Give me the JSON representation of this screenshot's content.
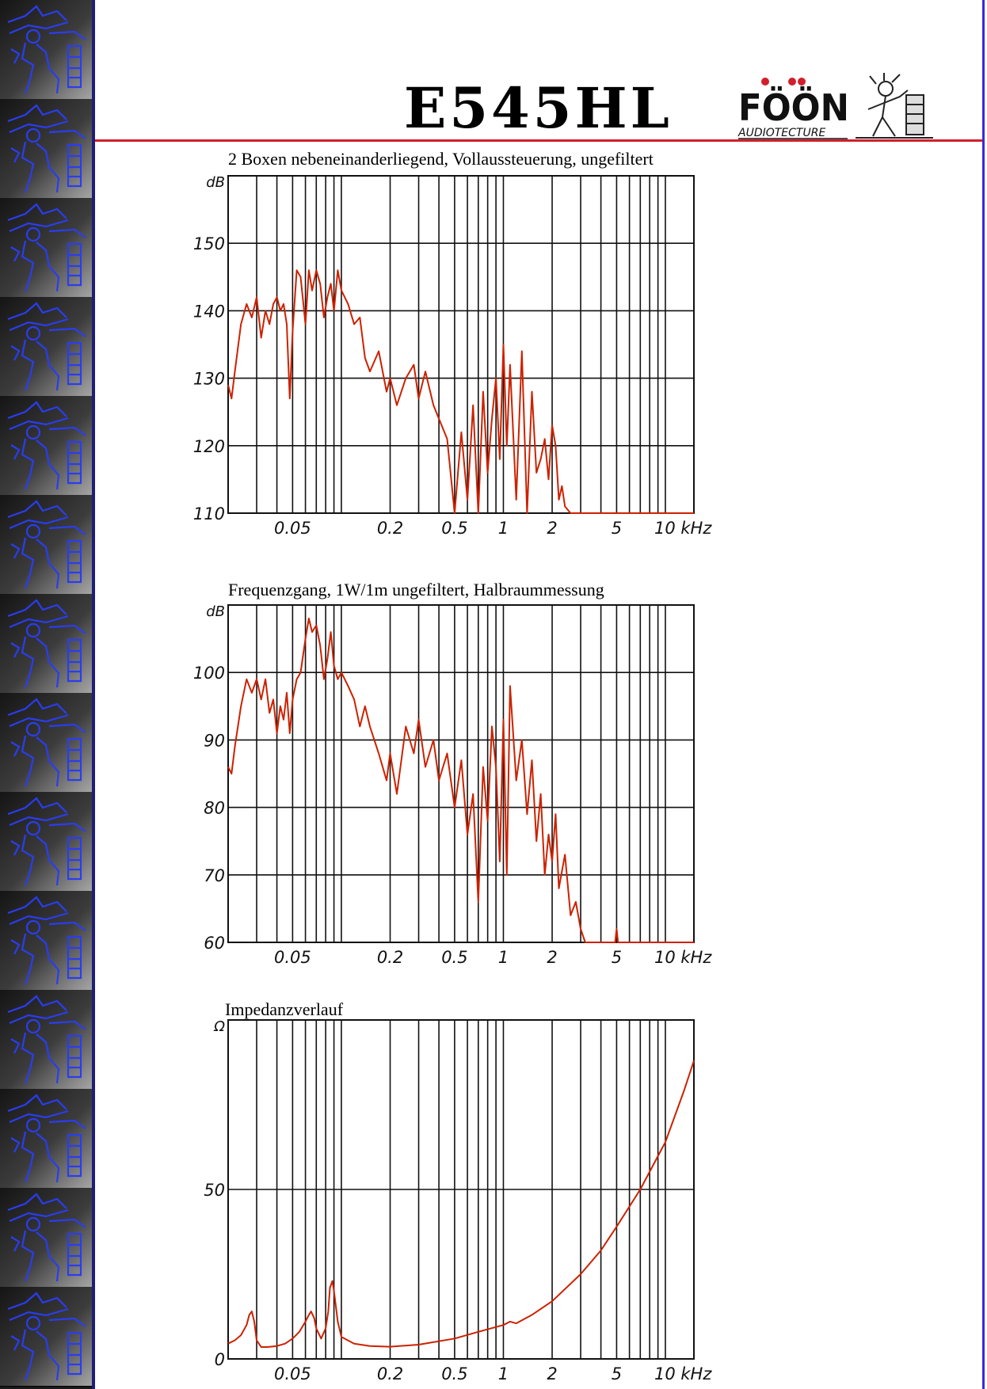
{
  "header": {
    "title": "E545HL",
    "brand": {
      "name": "FÖÖN",
      "tagline": "AUDIOTECTURE"
    }
  },
  "colors": {
    "accent_red": "#d21f2c",
    "curve": "#cc2200",
    "sidebar_art": "#2a3df0",
    "page_border": "#3a2ad8"
  },
  "sidebar": {
    "decoration": "repeated-blue-figure-tile"
  },
  "frequency_axis": {
    "scale": "log",
    "xlim": [
      0.02,
      15
    ],
    "unit_label": "kHz",
    "tick_labels": [
      {
        "value": 0.05,
        "label": "0.05"
      },
      {
        "value": 0.2,
        "label": "0.2"
      },
      {
        "value": 0.5,
        "label": "0.5"
      },
      {
        "value": 1,
        "label": "1"
      },
      {
        "value": 2,
        "label": "2"
      },
      {
        "value": 5,
        "label": "5"
      },
      {
        "value": 10,
        "label": "10 kHz"
      }
    ],
    "gridlines": [
      0.03,
      0.04,
      0.05,
      0.06,
      0.07,
      0.08,
      0.09,
      0.1,
      0.2,
      0.3,
      0.4,
      0.5,
      0.6,
      0.7,
      0.8,
      0.9,
      1,
      2,
      3,
      4,
      5,
      6,
      7,
      8,
      9,
      10
    ]
  },
  "chart_data": [
    {
      "type": "line",
      "title": "2 Boxen nebeneinanderliegend, Vollaussteuerung, ungefiltert",
      "ylabel": "dB",
      "xscale": "log",
      "xlim": [
        0.02,
        15
      ],
      "ylim": [
        110,
        160
      ],
      "yticks": [
        110,
        120,
        130,
        140,
        150
      ],
      "grid": true,
      "series": [
        {
          "x": [
            0.02,
            0.021,
            0.022,
            0.024,
            0.026,
            0.028,
            0.03,
            0.032,
            0.034,
            0.036,
            0.038,
            0.04,
            0.042,
            0.044,
            0.046,
            0.048,
            0.05,
            0.053,
            0.056,
            0.06,
            0.063,
            0.066,
            0.07,
            0.074,
            0.078,
            0.082,
            0.086,
            0.09,
            0.095,
            0.1,
            0.11,
            0.12,
            0.13,
            0.14,
            0.15,
            0.17,
            0.19,
            0.2,
            0.22,
            0.25,
            0.28,
            0.3,
            0.33,
            0.37,
            0.4,
            0.45,
            0.5,
            0.55,
            0.6,
            0.65,
            0.7,
            0.75,
            0.8,
            0.85,
            0.9,
            0.95,
            1,
            1.05,
            1.1,
            1.2,
            1.3,
            1.4,
            1.5,
            1.6,
            1.7,
            1.8,
            1.9,
            2,
            2.1,
            2.2,
            2.3,
            2.4,
            2.6,
            3,
            5,
            15
          ],
          "y": [
            129,
            127,
            131,
            138,
            141,
            139,
            142,
            136,
            140,
            138,
            141,
            142,
            140,
            141,
            138,
            127,
            137,
            146,
            145,
            138,
            146,
            143,
            146,
            144,
            139,
            142,
            144,
            140,
            146,
            143,
            141,
            138,
            139,
            133,
            131,
            134,
            128,
            130,
            126,
            130,
            132,
            127,
            131,
            126,
            124,
            121,
            110,
            122,
            112,
            126,
            110,
            128,
            116,
            124,
            130,
            118,
            135,
            120,
            132,
            112,
            134,
            110,
            128,
            116,
            118,
            121,
            115,
            123,
            120,
            112,
            114,
            111,
            110,
            110,
            110,
            110
          ]
        }
      ]
    },
    {
      "type": "line",
      "title": "Frequenzgang, 1W/1m ungefiltert, Halbraummessung",
      "ylabel": "dB",
      "xscale": "log",
      "xlim": [
        0.02,
        15
      ],
      "ylim": [
        60,
        110
      ],
      "yticks": [
        60,
        70,
        80,
        90,
        100
      ],
      "grid": true,
      "series": [
        {
          "x": [
            0.02,
            0.021,
            0.022,
            0.024,
            0.026,
            0.028,
            0.03,
            0.032,
            0.034,
            0.036,
            0.038,
            0.04,
            0.042,
            0.044,
            0.046,
            0.048,
            0.05,
            0.053,
            0.056,
            0.06,
            0.063,
            0.066,
            0.07,
            0.074,
            0.078,
            0.082,
            0.086,
            0.09,
            0.095,
            0.1,
            0.11,
            0.12,
            0.13,
            0.14,
            0.15,
            0.17,
            0.19,
            0.2,
            0.22,
            0.25,
            0.28,
            0.3,
            0.33,
            0.37,
            0.4,
            0.45,
            0.5,
            0.55,
            0.6,
            0.65,
            0.7,
            0.75,
            0.8,
            0.85,
            0.9,
            0.95,
            1,
            1.05,
            1.1,
            1.2,
            1.3,
            1.4,
            1.5,
            1.6,
            1.7,
            1.8,
            1.9,
            2,
            2.1,
            2.2,
            2.4,
            2.6,
            2.8,
            3,
            3.2,
            3.5,
            4,
            4.9,
            5,
            5.1,
            6,
            15
          ],
          "y": [
            86,
            85,
            89,
            95,
            99,
            97,
            99,
            96,
            99,
            94,
            96,
            91,
            95,
            93,
            97,
            91,
            96,
            99,
            100,
            105,
            108,
            106,
            107,
            104,
            99,
            102,
            106,
            101,
            99,
            100,
            98,
            96,
            92,
            95,
            92,
            88,
            84,
            88,
            82,
            92,
            88,
            93,
            86,
            90,
            84,
            88,
            80,
            87,
            76,
            82,
            66,
            86,
            78,
            92,
            86,
            72,
            93,
            70,
            98,
            84,
            90,
            79,
            87,
            75,
            82,
            70,
            76,
            72,
            79,
            68,
            73,
            64,
            66,
            62,
            60,
            60,
            60,
            60,
            62,
            60,
            60,
            60
          ]
        }
      ]
    },
    {
      "type": "line",
      "title": "Impedanzverlauf",
      "ylabel": "Ω",
      "xscale": "log",
      "xlim": [
        0.02,
        15
      ],
      "ylim": [
        0,
        100
      ],
      "yticks": [
        0,
        50
      ],
      "grid": true,
      "series": [
        {
          "x": [
            0.02,
            0.022,
            0.024,
            0.026,
            0.027,
            0.028,
            0.029,
            0.03,
            0.032,
            0.035,
            0.04,
            0.045,
            0.05,
            0.055,
            0.06,
            0.063,
            0.065,
            0.068,
            0.07,
            0.075,
            0.08,
            0.083,
            0.085,
            0.088,
            0.09,
            0.095,
            0.1,
            0.12,
            0.15,
            0.2,
            0.3,
            0.5,
            0.7,
            1,
            1.1,
            1.2,
            1.5,
            2,
            3,
            4,
            5,
            7,
            10,
            13,
            15
          ],
          "y": [
            4.5,
            5.5,
            7,
            10,
            13,
            14,
            11,
            5.5,
            3.5,
            3.5,
            3.8,
            4.5,
            6,
            8,
            11,
            13,
            14,
            12,
            9,
            6,
            9,
            14,
            21,
            23,
            20,
            11,
            6.5,
            4.5,
            3.8,
            3.6,
            4.2,
            6,
            8,
            10,
            11,
            10.5,
            13,
            17,
            25,
            32,
            39,
            50,
            64,
            79,
            88
          ]
        }
      ]
    }
  ]
}
